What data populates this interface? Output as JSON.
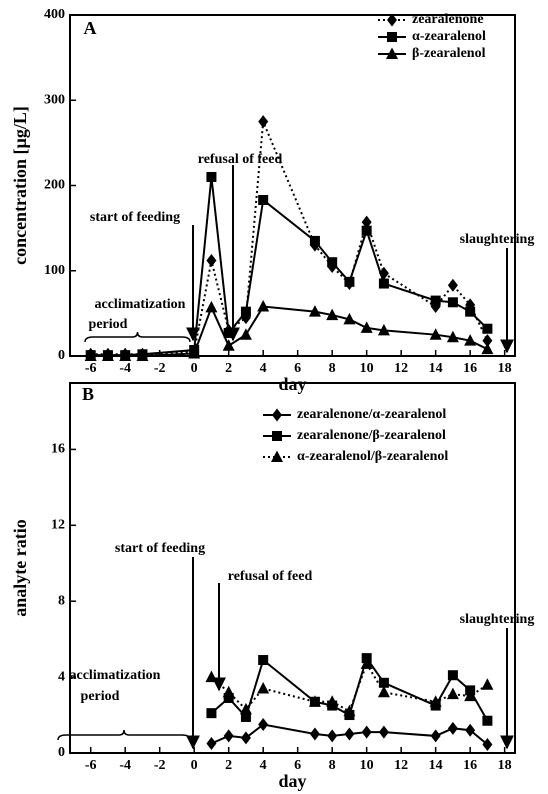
{
  "chart_data": [
    {
      "type": "line",
      "panel": "A",
      "x": [
        -6,
        -5,
        -4,
        -3,
        0,
        1,
        2,
        3,
        4,
        7,
        8,
        9,
        10,
        11,
        14,
        15,
        16,
        17
      ],
      "series": [
        {
          "name": "zearalenone",
          "color": "#000000",
          "marker": "diamond",
          "dotted": true,
          "values": [
            2,
            2,
            2,
            2,
            5,
            112,
            30,
            45,
            275,
            130,
            105,
            85,
            157,
            97,
            58,
            83,
            60,
            18
          ]
        },
        {
          "name": "α-zearalenol",
          "color": "#000000",
          "marker": "square",
          "dotted": false,
          "values": [
            1,
            1,
            1,
            2,
            7,
            210,
            27,
            52,
            183,
            135,
            110,
            87,
            147,
            85,
            65,
            63,
            52,
            32
          ]
        },
        {
          "name": "β-zearalenol",
          "color": "#000000",
          "marker": "triangle",
          "dotted": false,
          "values": [
            0,
            0,
            0,
            0,
            3,
            57,
            12,
            25,
            58,
            52,
            48,
            43,
            33,
            30,
            25,
            22,
            18,
            8
          ]
        }
      ],
      "xlabel": "day",
      "ylabel": "concentration [µg/L]",
      "xlim": [
        -7.2,
        18.6
      ],
      "xticks": [
        -6,
        -4,
        -2,
        0,
        2,
        4,
        6,
        8,
        10,
        12,
        14,
        16,
        18
      ],
      "ylim": [
        0,
        400
      ],
      "yticks": [
        0,
        100,
        200,
        300,
        400
      ],
      "annotations": [
        "start of feeding",
        "refusal of feed",
        "slaughtering",
        "acclimatization",
        "period"
      ]
    },
    {
      "type": "line",
      "panel": "B",
      "x": [
        1,
        2,
        3,
        4,
        7,
        8,
        9,
        10,
        11,
        14,
        15,
        16,
        17
      ],
      "series": [
        {
          "name": "zearalenone/α-zearalenol",
          "color": "#000000",
          "marker": "diamond",
          "dotted": false,
          "values": [
            0.5,
            0.9,
            0.8,
            1.5,
            1.0,
            0.9,
            1.0,
            1.1,
            1.1,
            0.9,
            1.3,
            1.2,
            0.45
          ]
        },
        {
          "name": "zearalenone/β-zearalenol",
          "color": "#000000",
          "marker": "square",
          "dotted": false,
          "values": [
            2.1,
            2.9,
            1.9,
            4.9,
            2.7,
            2.5,
            2.0,
            5.0,
            3.7,
            2.5,
            4.1,
            3.3,
            1.7
          ]
        },
        {
          "name": "α-zearalenol/β-zearalenol",
          "color": "#000000",
          "marker": "triangle",
          "dotted": true,
          "values": [
            4.0,
            3.2,
            2.3,
            3.4,
            2.7,
            2.7,
            2.2,
            4.7,
            3.2,
            2.7,
            3.1,
            3.0,
            3.6
          ]
        }
      ],
      "xlabel": "day",
      "ylabel": "analyte ratio",
      "xlim": [
        -7.2,
        18.6
      ],
      "xticks": [
        -6,
        -4,
        -2,
        0,
        2,
        4,
        6,
        8,
        10,
        12,
        14,
        16,
        18
      ],
      "ylim": [
        0,
        19.5
      ],
      "yticks": [
        0,
        4,
        8,
        12,
        16
      ],
      "annotations": [
        "start of feeding",
        "refusal of feed",
        "slaughtering",
        "acclimatization",
        "period"
      ]
    }
  ]
}
